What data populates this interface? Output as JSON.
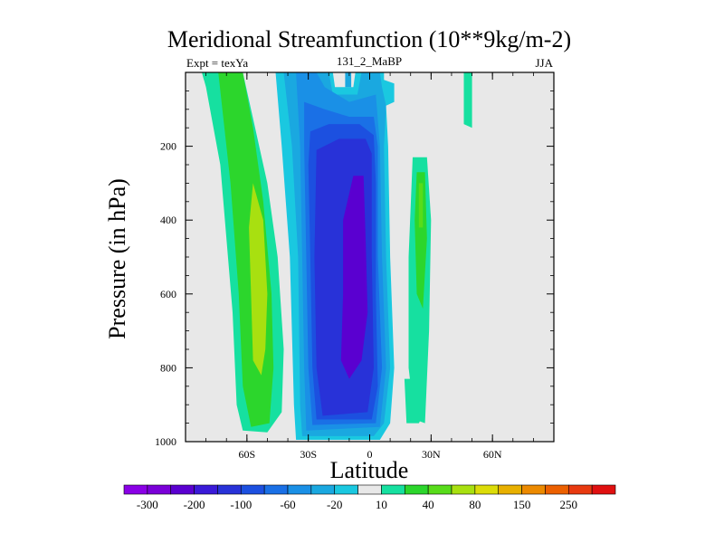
{
  "chart_data": {
    "type": "heatmap",
    "title": "Meridional Streamfunction (10**9kg/m-2)",
    "subtitle_left": "Expt = texYa",
    "subtitle_center": "131_2_MaBP",
    "subtitle_right": "JJA",
    "xlabel": "Latitude",
    "ylabel": "Pressure (in hPa)",
    "xlim": [
      -90,
      90
    ],
    "ylim": [
      1000,
      0
    ],
    "x_ticks": [
      {
        "value": -60,
        "label": "60S"
      },
      {
        "value": -30,
        "label": "30S"
      },
      {
        "value": 0,
        "label": "0"
      },
      {
        "value": 30,
        "label": "30N"
      },
      {
        "value": 60,
        "label": "60N"
      }
    ],
    "y_ticks": [
      {
        "value": 200,
        "label": "200"
      },
      {
        "value": 400,
        "label": "400"
      },
      {
        "value": 600,
        "label": "600"
      },
      {
        "value": 800,
        "label": "800"
      },
      {
        "value": 1000,
        "label": "1000"
      }
    ],
    "background_color": "#e8e8e8",
    "colorbar": {
      "colors": [
        "#8a00e6",
        "#7a00d8",
        "#5a00d0",
        "#3a1ad8",
        "#2832d8",
        "#1c50e0",
        "#1a70e6",
        "#1a90e6",
        "#1aa8e0",
        "#1ac8e0",
        "#e8e8e8",
        "#16e0a0",
        "#2cd62c",
        "#58dc1a",
        "#a8e010",
        "#dcdc08",
        "#e8b000",
        "#ec8a00",
        "#ec6000",
        "#e83a10",
        "#e01010"
      ],
      "labels": [
        {
          "after_index": 0,
          "label": "-300"
        },
        {
          "after_index": 2,
          "label": "-200"
        },
        {
          "after_index": 4,
          "label": "-100"
        },
        {
          "after_index": 6,
          "label": "-60"
        },
        {
          "after_index": 8,
          "label": "-20"
        },
        {
          "after_index": 10,
          "label": "10"
        },
        {
          "after_index": 12,
          "label": "40"
        },
        {
          "after_index": 14,
          "label": "80"
        },
        {
          "after_index": 16,
          "label": "150"
        },
        {
          "after_index": 18,
          "label": "250"
        }
      ]
    },
    "contour_regions": [
      {
        "name": "sh-green-outer",
        "color": "#16e0a0",
        "points": [
          [
            -82,
            0
          ],
          [
            -62,
            0
          ],
          [
            -56,
            150
          ],
          [
            -50,
            300
          ],
          [
            -45,
            500
          ],
          [
            -42,
            750
          ],
          [
            -43,
            920
          ],
          [
            -50,
            975
          ],
          [
            -62,
            970
          ],
          [
            -65,
            900
          ],
          [
            -67,
            650
          ],
          [
            -73,
            250
          ],
          [
            -80,
            40
          ]
        ]
      },
      {
        "name": "sh-green-mid",
        "color": "#2cd62c",
        "points": [
          [
            -74,
            0
          ],
          [
            -62,
            0
          ],
          [
            -57,
            150
          ],
          [
            -52,
            350
          ],
          [
            -48,
            600
          ],
          [
            -47,
            800
          ],
          [
            -49,
            950
          ],
          [
            -58,
            960
          ],
          [
            -62,
            850
          ],
          [
            -64,
            600
          ],
          [
            -68,
            300
          ]
        ]
      },
      {
        "name": "sh-green-core",
        "color": "#a8e010",
        "points": [
          [
            -57,
            300
          ],
          [
            -52,
            400
          ],
          [
            -50,
            600
          ],
          [
            -51,
            750
          ],
          [
            -53,
            820
          ],
          [
            -57,
            780
          ],
          [
            -58,
            600
          ],
          [
            -59,
            420
          ]
        ]
      },
      {
        "name": "sh-small-blob",
        "color": "#16e0a0",
        "points": [
          [
            -82,
            0
          ],
          [
            -80,
            0
          ],
          [
            -80,
            20
          ],
          [
            -81,
            20
          ]
        ]
      },
      {
        "name": "neg-1",
        "color": "#1ac8e0",
        "points": [
          [
            -46,
            0
          ],
          [
            -18,
            0
          ],
          [
            -17,
            40
          ],
          [
            -8,
            40
          ],
          [
            -7,
            0
          ],
          [
            7,
            0
          ],
          [
            7,
            20
          ],
          [
            12,
            30
          ],
          [
            12,
            80
          ],
          [
            8,
            90
          ],
          [
            9,
            200
          ],
          [
            10,
            500
          ],
          [
            12,
            800
          ],
          [
            10,
            950
          ],
          [
            5,
            995
          ],
          [
            -36,
            995
          ],
          [
            -37,
            900
          ],
          [
            -39,
            500
          ],
          [
            -43,
            200
          ]
        ]
      },
      {
        "name": "neg-2",
        "color": "#1aa8e0",
        "points": [
          [
            -42,
            0
          ],
          [
            -20,
            0
          ],
          [
            -18,
            60
          ],
          [
            -6,
            60
          ],
          [
            -4,
            0
          ],
          [
            5,
            0
          ],
          [
            6,
            40
          ],
          [
            8,
            90
          ],
          [
            7,
            200
          ],
          [
            8,
            500
          ],
          [
            10,
            800
          ],
          [
            7,
            950
          ],
          [
            2,
            985
          ],
          [
            -33,
            985
          ],
          [
            -34,
            900
          ],
          [
            -35,
            500
          ],
          [
            -38,
            200
          ]
        ]
      },
      {
        "name": "neg-3",
        "color": "#1a90e6",
        "points": [
          [
            -36,
            0
          ],
          [
            -26,
            0
          ],
          [
            -22,
            40
          ],
          [
            -10,
            80
          ],
          [
            3,
            60
          ],
          [
            5,
            200
          ],
          [
            6,
            500
          ],
          [
            8,
            800
          ],
          [
            5,
            960
          ],
          [
            -31,
            970
          ],
          [
            -32,
            800
          ],
          [
            -33,
            500
          ],
          [
            -34,
            200
          ]
        ]
      },
      {
        "name": "neg-4",
        "color": "#1a70e6",
        "points": [
          [
            -32,
            80
          ],
          [
            -22,
            100
          ],
          [
            -10,
            120
          ],
          [
            2,
            120
          ],
          [
            4,
            200
          ],
          [
            4,
            500
          ],
          [
            6,
            800
          ],
          [
            3,
            950
          ],
          [
            -28,
            955
          ],
          [
            -30,
            800
          ],
          [
            -31,
            500
          ],
          [
            -32,
            200
          ]
        ]
      },
      {
        "name": "neg-5",
        "color": "#1c50e0",
        "points": [
          [
            -29,
            160
          ],
          [
            -20,
            140
          ],
          [
            -5,
            140
          ],
          [
            2,
            170
          ],
          [
            3,
            300
          ],
          [
            3,
            600
          ],
          [
            4,
            850
          ],
          [
            1,
            940
          ],
          [
            -26,
            940
          ],
          [
            -28,
            800
          ],
          [
            -29,
            500
          ],
          [
            -30,
            250
          ]
        ]
      },
      {
        "name": "neg-6",
        "color": "#2832d8",
        "points": [
          [
            -26,
            210
          ],
          [
            -15,
            180
          ],
          [
            -2,
            180
          ],
          [
            1,
            220
          ],
          [
            1,
            500
          ],
          [
            2,
            800
          ],
          [
            -1,
            920
          ],
          [
            -23,
            930
          ],
          [
            -26,
            800
          ],
          [
            -27,
            500
          ]
        ]
      },
      {
        "name": "neg-7",
        "color": "#5a00d0",
        "points": [
          [
            -13,
            400
          ],
          [
            -8,
            280
          ],
          [
            -3,
            280
          ],
          [
            -2,
            450
          ],
          [
            -1,
            650
          ],
          [
            -4,
            780
          ],
          [
            -10,
            830
          ],
          [
            -14,
            780
          ],
          [
            -13,
            600
          ]
        ]
      },
      {
        "name": "neg-ridge",
        "color": "#1aa8e0",
        "points": [
          [
            -12,
            0
          ],
          [
            -9,
            0
          ],
          [
            -9,
            40
          ],
          [
            -12,
            40
          ]
        ]
      },
      {
        "name": "nh-green-outer",
        "color": "#16e0a0",
        "points": [
          [
            21,
            230
          ],
          [
            28,
            230
          ],
          [
            30,
            400
          ],
          [
            29,
            700
          ],
          [
            27,
            950
          ],
          [
            22,
            940
          ],
          [
            19,
            800
          ],
          [
            19,
            500
          ]
        ]
      },
      {
        "name": "nh-green-inner",
        "color": "#2cd62c",
        "points": [
          [
            23,
            270
          ],
          [
            27,
            270
          ],
          [
            28,
            450
          ],
          [
            26,
            640
          ],
          [
            23,
            600
          ],
          [
            22,
            400
          ]
        ]
      },
      {
        "name": "nh-green-core",
        "color": "#58dc1a",
        "points": [
          [
            24,
            300
          ],
          [
            26,
            300
          ],
          [
            26,
            420
          ],
          [
            24,
            420
          ]
        ]
      },
      {
        "name": "nh-lower-blob",
        "color": "#16e0a0",
        "points": [
          [
            17,
            830
          ],
          [
            25,
            830
          ],
          [
            27,
            920
          ],
          [
            24,
            950
          ],
          [
            18,
            950
          ]
        ]
      },
      {
        "name": "nh-top-blob",
        "color": "#16e0a0",
        "points": [
          [
            46,
            0
          ],
          [
            50,
            0
          ],
          [
            50,
            150
          ],
          [
            46,
            140
          ]
        ]
      }
    ]
  }
}
